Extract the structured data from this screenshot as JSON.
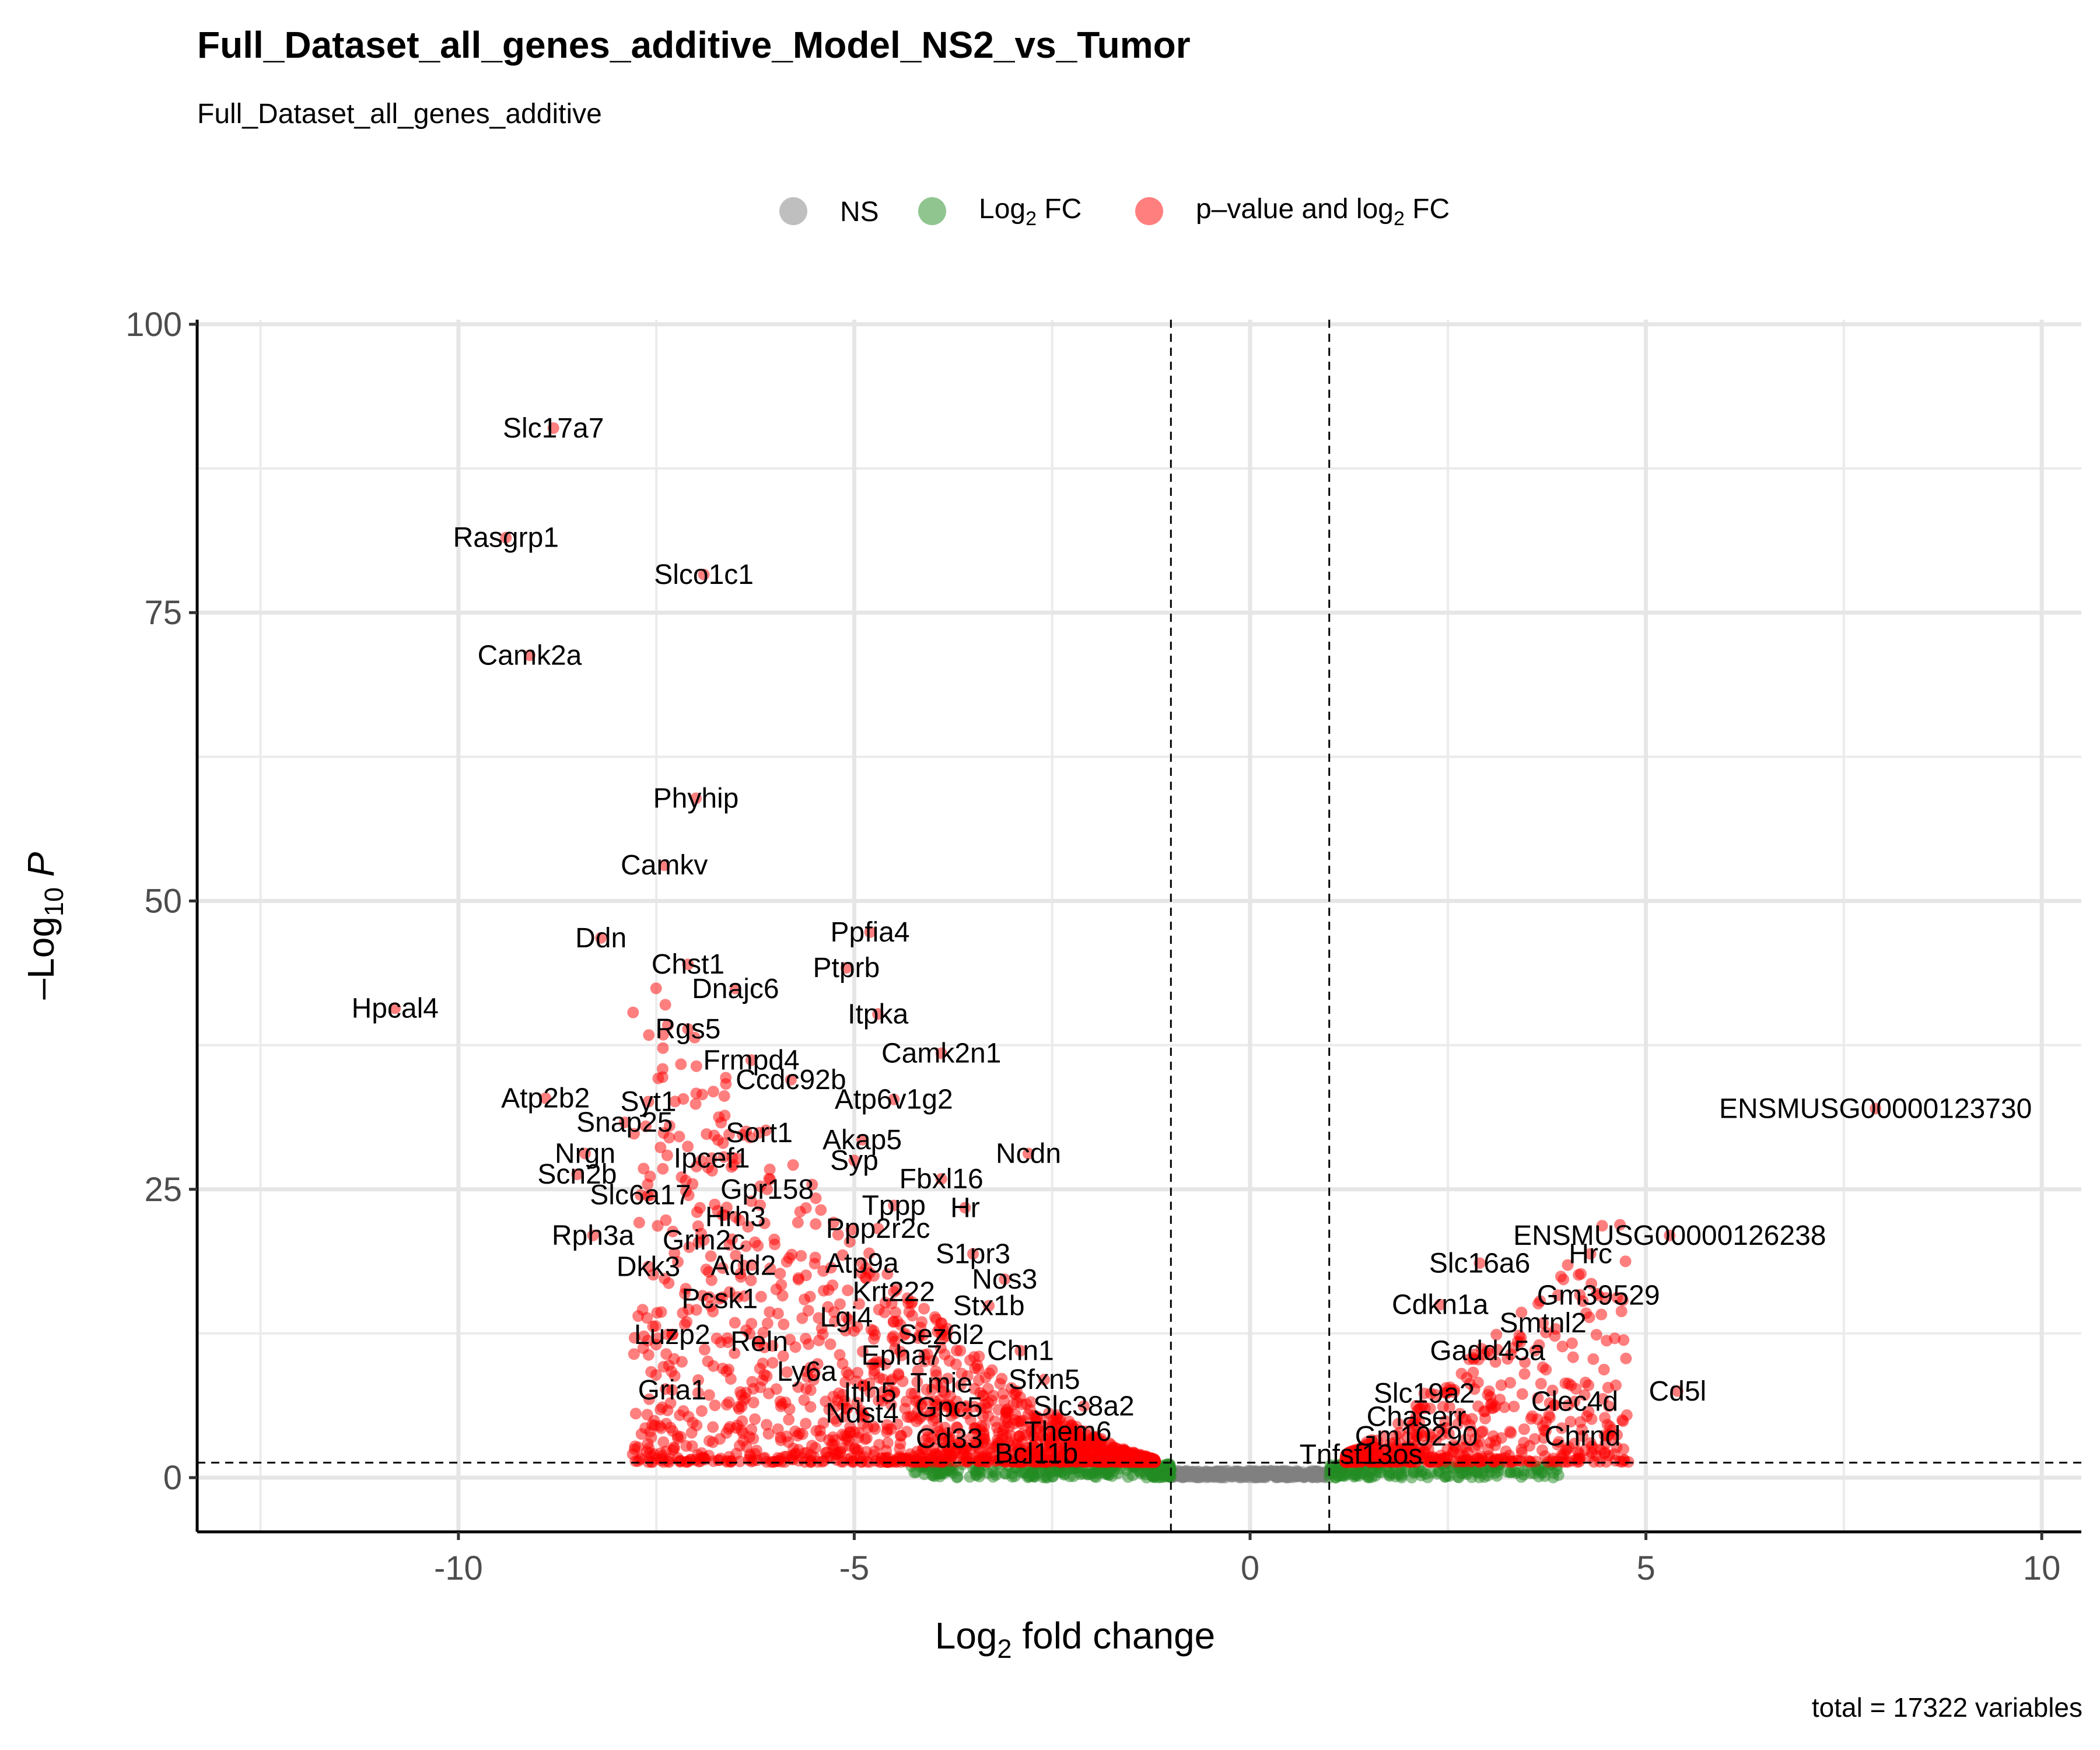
{
  "chart_data": {
    "type": "scatter",
    "title": "Full_Dataset_all_genes_additive_Model_NS2_vs_Tumor",
    "subtitle": "Full_Dataset_all_genes_additive",
    "caption": "total = 17322 variables",
    "xlabel_base": "Log",
    "xlabel_sub": "2",
    "xlabel_rest": " fold change",
    "ylabel_base": "–Log",
    "ylabel_sub": "10",
    "ylabel_rest": "P",
    "xlim": [
      -13.3,
      10.5
    ],
    "ylim": [
      -4.7,
      100.4
    ],
    "xticks": [
      -10,
      -5,
      0,
      5,
      10
    ],
    "xticklabels": [
      "-10",
      "-5",
      "0",
      "5",
      "10"
    ],
    "yticks": [
      0,
      25,
      50,
      75,
      100
    ],
    "yticklabels": [
      "0",
      "25",
      "50",
      "75",
      "100"
    ],
    "fc_cutoff": 1,
    "p_cutoff_log10": 1.3,
    "grid": true,
    "legend_position": "top",
    "legend": [
      {
        "key": "ns",
        "label": "NS",
        "color": "#808080"
      },
      {
        "key": "fc",
        "label_base": "Log",
        "label_sub": "2",
        "label_rest": " FC",
        "color": "#228B22"
      },
      {
        "key": "both",
        "label_base": "p–value and log",
        "label_sub": "2",
        "label_rest": " FC",
        "color": "#FF0000"
      }
    ],
    "labeled_points": [
      {
        "label": "Slc17a7",
        "x": -8.8,
        "y": 91
      },
      {
        "label": "Rasgrp1",
        "x": -9.4,
        "y": 81.5
      },
      {
        "label": "Slco1c1",
        "x": -6.9,
        "y": 78.3
      },
      {
        "label": "Camk2a",
        "x": -9.1,
        "y": 71.3
      },
      {
        "label": "Phyhip",
        "x": -7.0,
        "y": 58.9
      },
      {
        "label": "Camkv",
        "x": -7.4,
        "y": 53.1
      },
      {
        "label": "Ddn",
        "x": -8.2,
        "y": 46.8
      },
      {
        "label": "Ppfia4",
        "x": -4.8,
        "y": 47.3
      },
      {
        "label": "Chst1",
        "x": -7.1,
        "y": 44.5
      },
      {
        "label": "Ptprb",
        "x": -5.1,
        "y": 44.2
      },
      {
        "label": "Hpcal4",
        "x": -10.8,
        "y": 40.7
      },
      {
        "label": "Dnajc6",
        "x": -6.5,
        "y": 42.4
      },
      {
        "label": "Itpka",
        "x": -4.7,
        "y": 40.2
      },
      {
        "label": "Rgs5",
        "x": -7.1,
        "y": 38.9
      },
      {
        "label": "Camk2n1",
        "x": -3.9,
        "y": 36.8
      },
      {
        "label": "Frmpd4",
        "x": -6.3,
        "y": 36.2
      },
      {
        "label": "Ccdc92b",
        "x": -5.8,
        "y": 34.5
      },
      {
        "label": "Atp2b2",
        "x": -8.9,
        "y": 32.9
      },
      {
        "label": "Syt1",
        "x": -7.6,
        "y": 32.6
      },
      {
        "label": "Atp6v1g2",
        "x": -4.5,
        "y": 32.8
      },
      {
        "label": "Snap25",
        "x": -7.9,
        "y": 30.8
      },
      {
        "label": "Sort1",
        "x": -6.2,
        "y": 29.9
      },
      {
        "label": "Akap5",
        "x": -4.9,
        "y": 29.3
      },
      {
        "label": "Nrgn",
        "x": -8.4,
        "y": 28.1
      },
      {
        "label": "Ipcef1",
        "x": -6.8,
        "y": 27.7
      },
      {
        "label": "Ncdn",
        "x": -2.8,
        "y": 28.1
      },
      {
        "label": "Syp",
        "x": -5.0,
        "y": 27.5
      },
      {
        "label": "Scn2b",
        "x": -8.5,
        "y": 26.3
      },
      {
        "label": "Fbxl16",
        "x": -3.9,
        "y": 25.9
      },
      {
        "label": "Gpr158",
        "x": -6.1,
        "y": 25.0
      },
      {
        "label": "Slc6a17",
        "x": -7.7,
        "y": 24.5
      },
      {
        "label": "Tppp",
        "x": -4.5,
        "y": 23.6
      },
      {
        "label": "Hr",
        "x": -3.6,
        "y": 23.4
      },
      {
        "label": "Hrh3",
        "x": -6.5,
        "y": 22.6
      },
      {
        "label": "Ppp2r2c",
        "x": -4.7,
        "y": 21.6
      },
      {
        "label": "Rph3a",
        "x": -8.3,
        "y": 21.0
      },
      {
        "label": "Grin2c",
        "x": -6.9,
        "y": 20.6
      },
      {
        "label": "S1pr3",
        "x": -3.5,
        "y": 19.4
      },
      {
        "label": "Atp9a",
        "x": -4.9,
        "y": 18.6
      },
      {
        "label": "Dkk3",
        "x": -7.6,
        "y": 18.3
      },
      {
        "label": "Add2",
        "x": -6.4,
        "y": 18.4
      },
      {
        "label": "Nos3",
        "x": -3.1,
        "y": 17.2
      },
      {
        "label": "Krt222",
        "x": -4.5,
        "y": 16.1
      },
      {
        "label": "Pcsk1",
        "x": -6.7,
        "y": 15.5
      },
      {
        "label": "Stx1b",
        "x": -3.3,
        "y": 14.9
      },
      {
        "label": "Lgi4",
        "x": -5.1,
        "y": 13.9
      },
      {
        "label": "Luzp2",
        "x": -7.3,
        "y": 12.4
      },
      {
        "label": "Sez6l2",
        "x": -3.9,
        "y": 12.4
      },
      {
        "label": "Reln",
        "x": -6.2,
        "y": 11.8
      },
      {
        "label": "Chn1",
        "x": -2.9,
        "y": 11.0
      },
      {
        "label": "Epha7",
        "x": -4.4,
        "y": 10.6
      },
      {
        "label": "Ly6a",
        "x": -5.6,
        "y": 9.2
      },
      {
        "label": "Sfxn5",
        "x": -2.6,
        "y": 8.5
      },
      {
        "label": "Tmie",
        "x": -3.9,
        "y": 8.2
      },
      {
        "label": "Gria1",
        "x": -7.3,
        "y": 7.6
      },
      {
        "label": "Itih5",
        "x": -4.8,
        "y": 7.4
      },
      {
        "label": "Slc38a2",
        "x": -2.1,
        "y": 6.2
      },
      {
        "label": "Gpc5",
        "x": -3.8,
        "y": 6.1
      },
      {
        "label": "Ndst4",
        "x": -4.9,
        "y": 5.6
      },
      {
        "label": "Them6",
        "x": -2.3,
        "y": 4.0
      },
      {
        "label": "Cd33",
        "x": -3.8,
        "y": 3.4
      },
      {
        "label": "Bcl11b",
        "x": -2.7,
        "y": 2.1
      },
      {
        "label": "ENSMUSG00000123730",
        "x": 7.9,
        "y": 32.0
      },
      {
        "label": "ENSMUSG00000126238",
        "x": 5.3,
        "y": 21.0
      },
      {
        "label": "Slc16a6",
        "x": 2.9,
        "y": 18.6
      },
      {
        "label": "Hrc",
        "x": 4.3,
        "y": 19.4
      },
      {
        "label": "Gm39529",
        "x": 4.4,
        "y": 15.8
      },
      {
        "label": "Cdkn1a",
        "x": 2.4,
        "y": 15.0
      },
      {
        "label": "Smtnl2",
        "x": 3.7,
        "y": 13.4
      },
      {
        "label": "Gadd45a",
        "x": 3.0,
        "y": 11.0
      },
      {
        "label": "Cd5l",
        "x": 5.4,
        "y": 7.5
      },
      {
        "label": "Slc19a2",
        "x": 2.2,
        "y": 7.3
      },
      {
        "label": "Clec4d",
        "x": 4.1,
        "y": 6.6
      },
      {
        "label": "Chaserr",
        "x": 2.1,
        "y": 5.3
      },
      {
        "label": "Chrnd",
        "x": 4.2,
        "y": 3.6
      },
      {
        "label": "Gm10290",
        "x": 2.1,
        "y": 3.6
      },
      {
        "label": "Tnfsf13os",
        "x": 1.4,
        "y": 2.0
      }
    ]
  }
}
